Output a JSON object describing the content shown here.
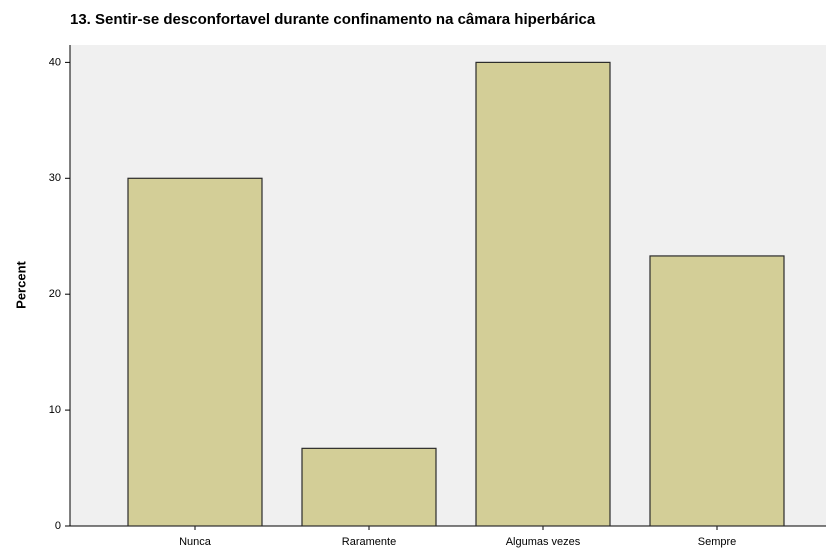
{
  "chart_data": {
    "type": "bar",
    "title": "13. Sentir-se desconfortavel durante confinamento na câmara hiperbárica",
    "ylabel": "Percent",
    "categories": [
      "Nunca",
      "Raramente",
      "Algumas vezes",
      "Sempre"
    ],
    "values": [
      30,
      6.7,
      40,
      23.3
    ],
    "color": "#d3ce97",
    "ylim": [
      0,
      41.5
    ],
    "yticks": [
      0,
      10,
      20,
      30,
      40
    ],
    "grid": false
  }
}
